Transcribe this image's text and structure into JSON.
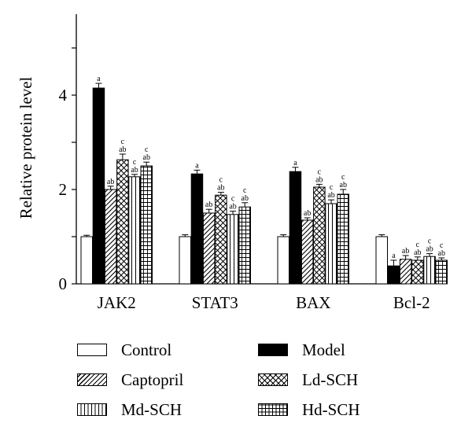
{
  "chart_data": {
    "type": "bar",
    "ylabel": "Relative protein level",
    "xlabel": "",
    "title": "",
    "ylim": [
      0,
      6
    ],
    "yticks": [
      0,
      2,
      4
    ],
    "categories": [
      "JAK2",
      "STAT3",
      "BAX",
      "Bcl-2"
    ],
    "series": [
      {
        "name": "Control",
        "fill": "white",
        "values": [
          1.0,
          1.0,
          1.0,
          1.0
        ],
        "errors": [
          0.03,
          0.04,
          0.04,
          0.04
        ],
        "annotations": [
          "",
          "",
          "",
          ""
        ]
      },
      {
        "name": "Model",
        "fill": "black",
        "values": [
          4.15,
          2.33,
          2.38,
          0.38
        ],
        "errors": [
          0.1,
          0.08,
          0.09,
          0.12
        ],
        "annotations": [
          "a",
          "a",
          "a",
          "a"
        ]
      },
      {
        "name": "Captopril",
        "fill": "diagonal",
        "values": [
          2.0,
          1.5,
          1.35,
          0.52
        ],
        "errors": [
          0.07,
          0.08,
          0.05,
          0.08
        ],
        "annotations": [
          "ab",
          "ab",
          "ab",
          "ab"
        ]
      },
      {
        "name": "Ld-SCH",
        "fill": "crosshatch",
        "values": [
          2.63,
          1.88,
          2.05,
          0.5
        ],
        "errors": [
          0.12,
          0.06,
          0.06,
          0.07
        ],
        "annotations": [
          "c\nab",
          "c\nab",
          "c\nab",
          "c\nab"
        ]
      },
      {
        "name": "Md-SCH",
        "fill": "vertical",
        "values": [
          2.27,
          1.47,
          1.7,
          0.58
        ],
        "errors": [
          0.05,
          0.07,
          0.08,
          0.06
        ],
        "annotations": [
          "c\nab",
          "c\nab",
          "c\nab",
          "c\nab"
        ]
      },
      {
        "name": "Hd-SCH",
        "fill": "grid",
        "values": [
          2.5,
          1.63,
          1.9,
          0.5
        ],
        "errors": [
          0.08,
          0.09,
          0.1,
          0.05
        ],
        "annotations": [
          "c\nab",
          "c\nab",
          "c\nab",
          "c\nab"
        ]
      }
    ]
  }
}
